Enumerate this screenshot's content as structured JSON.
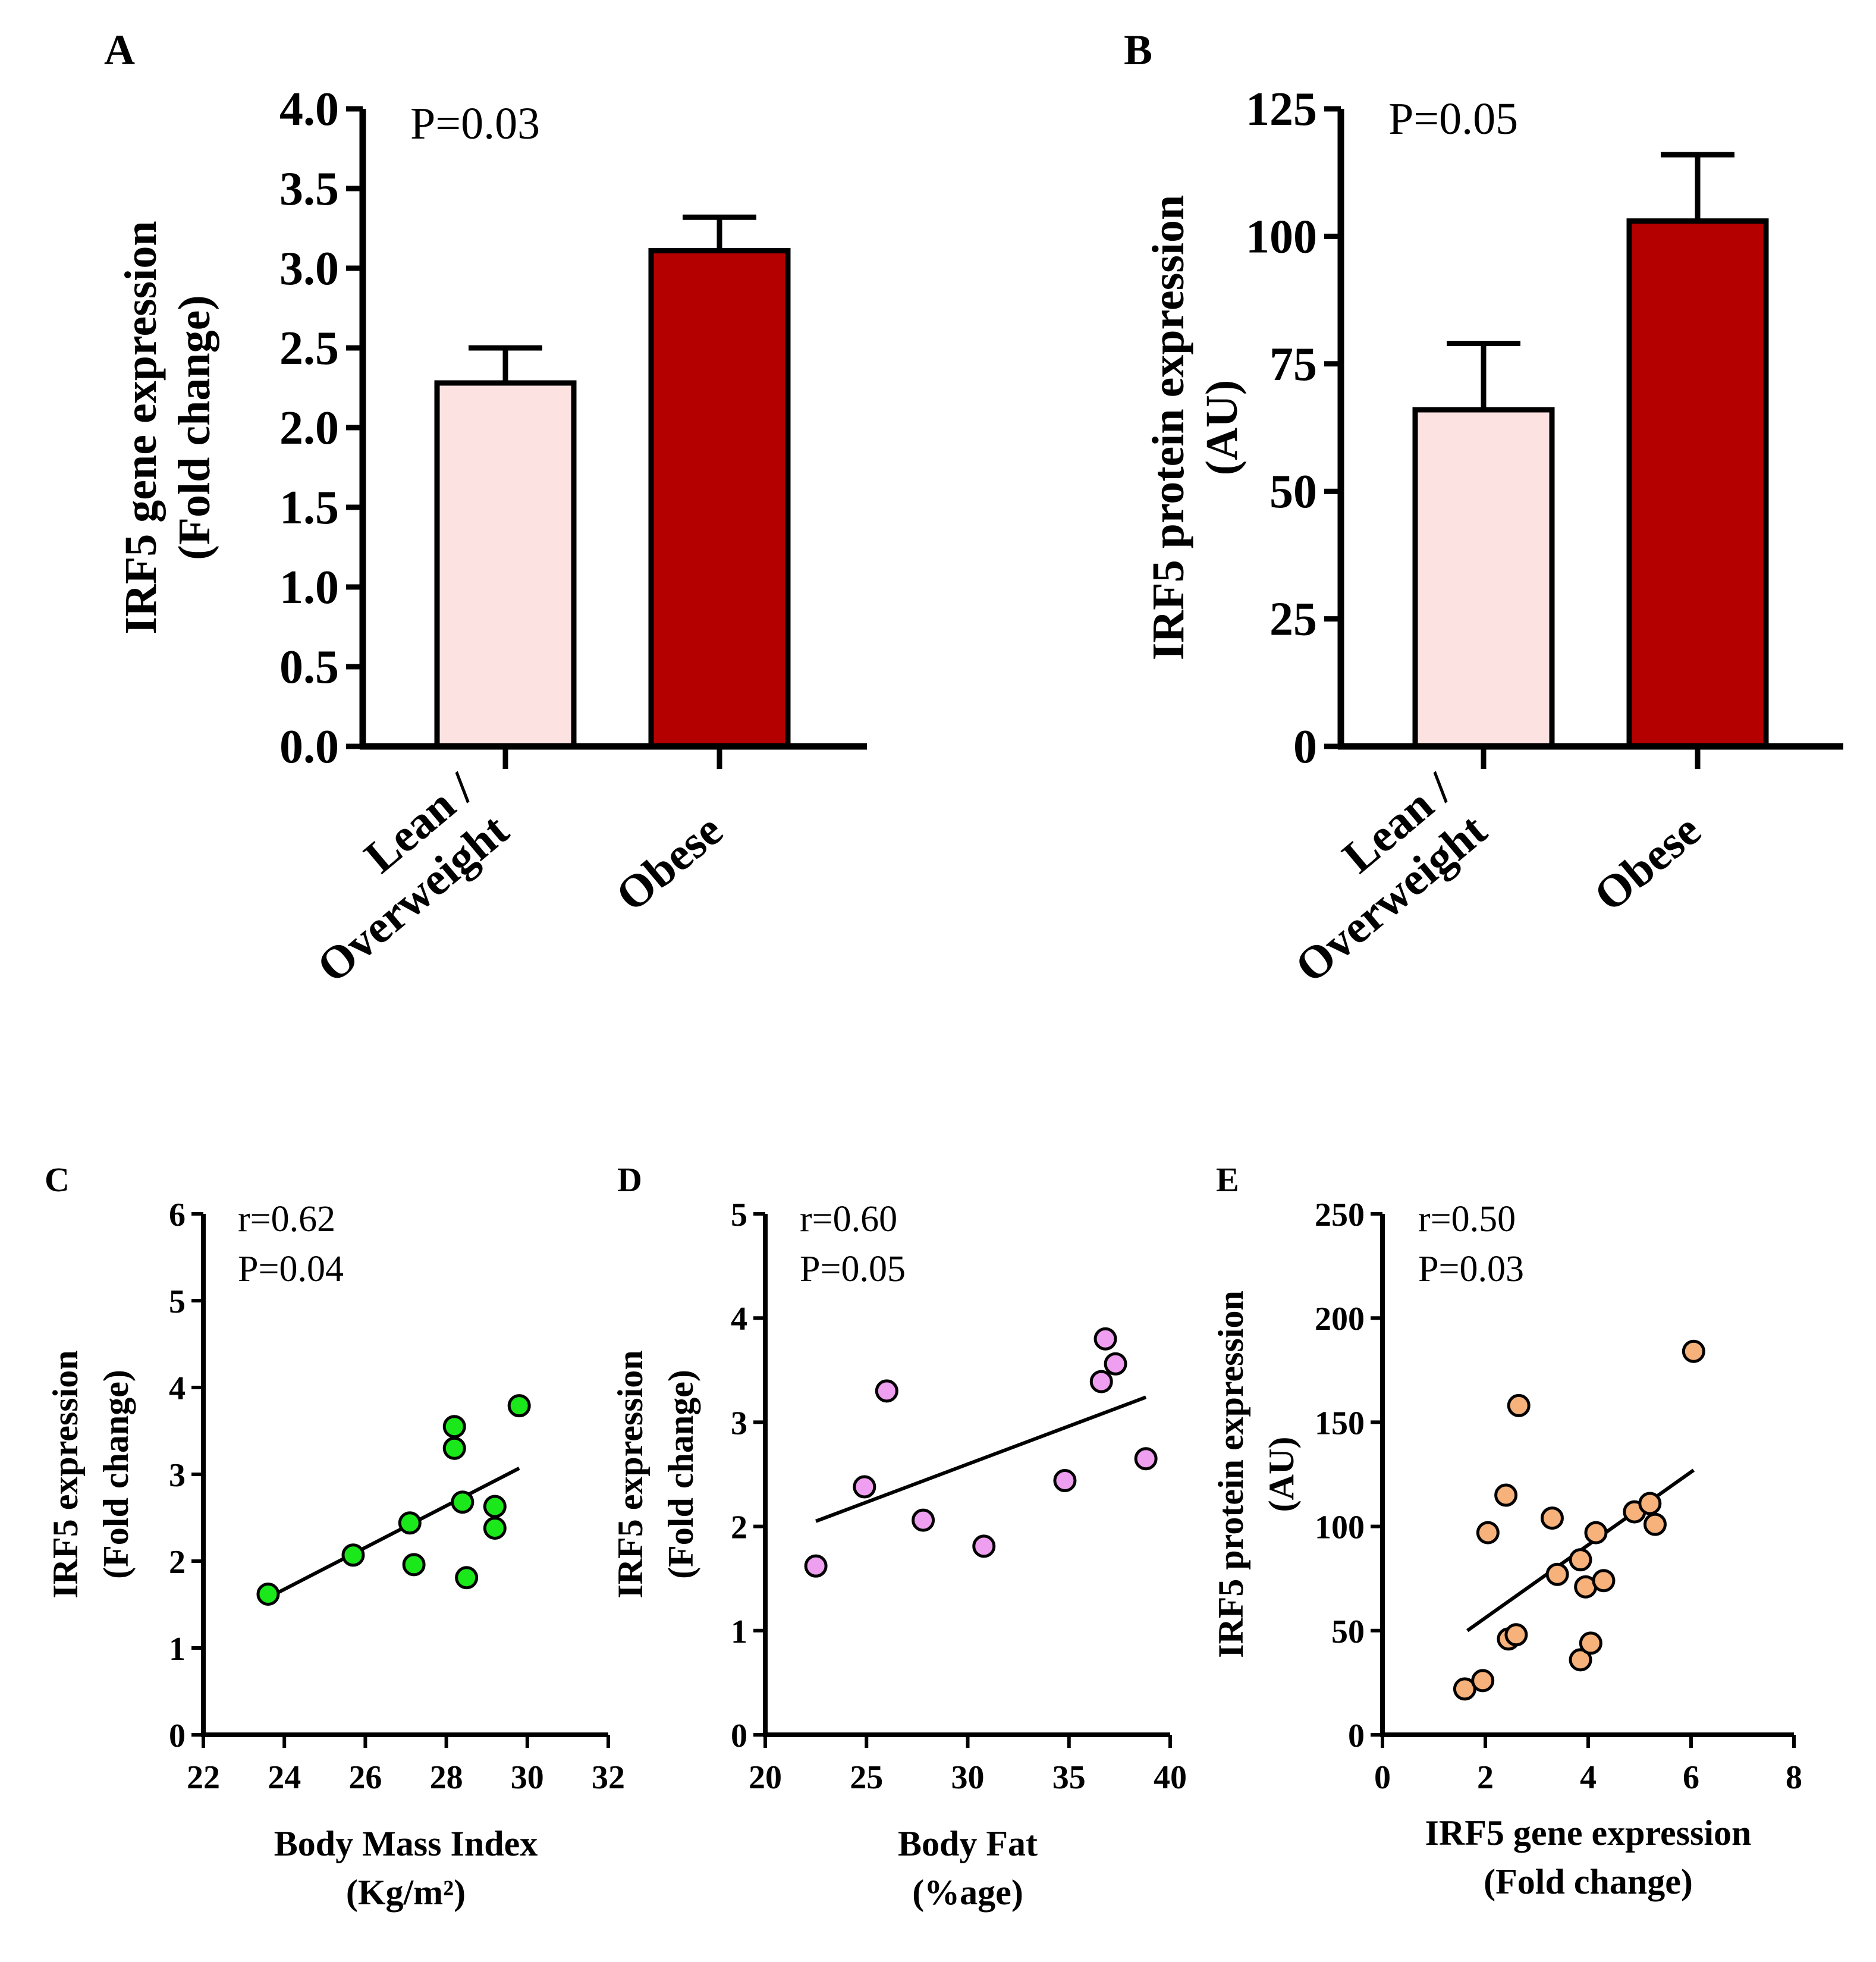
{
  "colors": {
    "axis": "#000000",
    "lean_fill": "#fde2e2",
    "obese_fill": "#b50000",
    "scatter_c": "#1be81b",
    "scatter_d": "#ef9fef",
    "scatter_e": "#f6b27a"
  },
  "chart_data": [
    {
      "id": "A",
      "panel_label": "A",
      "type": "bar",
      "categories": [
        "Lean / Overweight",
        "Obese"
      ],
      "category_lines": [
        [
          "Lean /",
          "Overweight"
        ],
        [
          "Obese"
        ]
      ],
      "values": [
        2.28,
        3.11
      ],
      "errors": [
        0.22,
        0.21
      ],
      "ylim": [
        0,
        4.0
      ],
      "yticks": [
        0.0,
        0.5,
        1.0,
        1.5,
        2.0,
        2.5,
        3.0,
        3.5,
        4.0
      ],
      "ytick_labels": [
        "0.0",
        "0.5",
        "1.0",
        "1.5",
        "2.0",
        "2.5",
        "3.0",
        "3.5",
        "4.0"
      ],
      "ylabel": [
        "IRF5 gene expression",
        "(Fold change)"
      ],
      "xlabel": "",
      "annotation": "P=0.03"
    },
    {
      "id": "B",
      "panel_label": "B",
      "type": "bar",
      "categories": [
        "Lean / Overweight",
        "Obese"
      ],
      "category_lines": [
        [
          "Lean /",
          "Overweight"
        ],
        [
          "Obese"
        ]
      ],
      "values": [
        66,
        103
      ],
      "errors": [
        13,
        13
      ],
      "ylim": [
        0,
        125
      ],
      "yticks": [
        0,
        25,
        50,
        75,
        100,
        125
      ],
      "ytick_labels": [
        "0",
        "25",
        "50",
        "75",
        "100",
        "125"
      ],
      "ylabel": [
        "IRF5 protein expression",
        "(AU)"
      ],
      "xlabel": "",
      "annotation": "P=0.05"
    },
    {
      "id": "C",
      "panel_label": "C",
      "type": "scatter",
      "x": [
        23.6,
        25.7,
        27.1,
        27.2,
        28.2,
        28.2,
        28.4,
        28.5,
        29.2,
        29.2,
        29.8
      ],
      "y": [
        1.62,
        2.07,
        2.44,
        1.96,
        3.55,
        3.3,
        2.68,
        1.81,
        2.63,
        2.38,
        3.79
      ],
      "fit": {
        "x": [
          23.6,
          29.8
        ],
        "y": [
          1.58,
          3.07
        ]
      },
      "xlim": [
        22,
        32
      ],
      "ylim": [
        0,
        6
      ],
      "xticks": [
        22,
        24,
        26,
        28,
        30,
        32
      ],
      "yticks": [
        0,
        1,
        2,
        3,
        4,
        5,
        6
      ],
      "xlabel": [
        "Body Mass Index",
        "(Kg/m²)"
      ],
      "ylabel": [
        "IRF5 expression",
        "(Fold change)"
      ],
      "annotation": [
        "r=0.62",
        "P=0.04"
      ]
    },
    {
      "id": "D",
      "panel_label": "D",
      "type": "scatter",
      "x": [
        22.5,
        24.9,
        26.0,
        27.8,
        30.8,
        34.8,
        36.6,
        36.8,
        37.3,
        38.8
      ],
      "y": [
        1.62,
        2.38,
        3.3,
        2.06,
        1.81,
        2.44,
        3.39,
        3.8,
        3.56,
        2.65
      ],
      "fit": {
        "x": [
          22.5,
          38.8
        ],
        "y": [
          2.05,
          3.24
        ]
      },
      "xlim": [
        20,
        40
      ],
      "ylim": [
        0,
        5
      ],
      "xticks": [
        20,
        25,
        30,
        35,
        40
      ],
      "yticks": [
        0,
        1,
        2,
        3,
        4,
        5
      ],
      "xlabel": [
        "Body Fat",
        "(%age)"
      ],
      "ylabel": [
        "IRF5 expression",
        "(Fold change)"
      ],
      "annotation": [
        "r=0.60",
        "P=0.05"
      ]
    },
    {
      "id": "E",
      "panel_label": "E",
      "type": "scatter",
      "x": [
        1.6,
        1.95,
        2.05,
        2.4,
        2.45,
        2.6,
        2.65,
        3.3,
        3.4,
        3.85,
        3.85,
        3.95,
        4.05,
        4.15,
        4.3,
        4.9,
        5.2,
        5.3,
        6.05
      ],
      "y": [
        22,
        26,
        97,
        115,
        46,
        48,
        158,
        104,
        77,
        84,
        36,
        71,
        44,
        97,
        74,
        107,
        111,
        101,
        184
      ],
      "fit": {
        "x": [
          1.65,
          6.05
        ],
        "y": [
          50,
          127
        ]
      },
      "xlim": [
        0,
        8
      ],
      "ylim": [
        0,
        250
      ],
      "xticks": [
        0,
        2,
        4,
        6,
        8
      ],
      "yticks": [
        0,
        50,
        100,
        150,
        200,
        250
      ],
      "xlabel": [
        "IRF5 gene expression",
        "(Fold change)"
      ],
      "ylabel": [
        "IRF5 protein expression",
        "(AU)"
      ],
      "annotation": [
        "r=0.50",
        "P=0.03"
      ]
    }
  ]
}
